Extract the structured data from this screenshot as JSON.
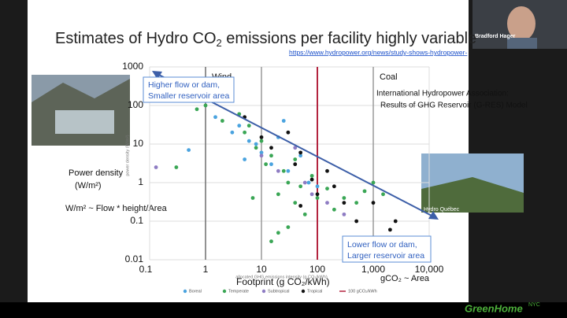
{
  "slide": {
    "title": [
      "Estimates of Hydro CO",
      "2",
      " emissions per facility highly variable"
    ],
    "link": "https://www.hydropower.org/news/study-shows-hydropower-",
    "photo_caption": "Hydro Québec",
    "ylabel_lines": [
      "Power density",
      "(W/m²)"
    ],
    "formula": "W/m² ~ Flow * height/Area",
    "xlabel": "Footprint (g CO₂/kWh)",
    "area_note": "gCO₂ ~ Area"
  },
  "video": {
    "name": "Bradford Hager"
  },
  "logo": {
    "name": "GreenHome",
    "sup": "NYC"
  },
  "chart_data": {
    "type": "scatter",
    "xscale": "log",
    "yscale": "log",
    "grid": true,
    "xlabel": "allocated GHG emissions intensity (g CO₂/kWh)",
    "ylabel": "power density (W/m²)",
    "xlim": [
      0.1,
      10000
    ],
    "ylim": [
      0.01,
      1000
    ],
    "xticks": [
      0.1,
      1,
      10,
      100,
      {
        "value": 1000,
        "label": "1,000"
      },
      {
        "value": 10000,
        "label": "10,000"
      }
    ],
    "yticks": [
      0.01,
      0.1,
      1,
      10,
      100,
      1000
    ],
    "ref_lines": [
      {
        "value": 1,
        "color": "#6e6e6e",
        "label": "Wind"
      },
      {
        "value": 10,
        "color": "#9a9a9a"
      },
      {
        "value": 100,
        "color": "#b3243f",
        "name": "100 gCO₂/kWh"
      },
      {
        "value": 1000,
        "color": "#9a9a9a",
        "label": "Coal"
      }
    ],
    "annotations": {
      "upper": [
        "Higher flow or dam,",
        "Smaller reservoir area"
      ],
      "lower": [
        "Lower flow or dam,",
        "Larger reservoir area"
      ],
      "source": [
        "International Hydropower Association:",
        "Results of GHG Reservoir (G-RES) Model"
      ]
    },
    "series": [
      {
        "name": "Boreal",
        "color": "#4aa3df",
        "x": [
          0.5,
          1.5,
          3,
          4,
          5,
          8,
          10,
          15,
          20,
          30,
          50,
          70,
          100,
          25,
          6
        ],
        "values": [
          7,
          50,
          20,
          30,
          4,
          10,
          6,
          3,
          15,
          2,
          5,
          1,
          0.8,
          40,
          12
        ]
      },
      {
        "name": "Temperate",
        "color": "#3aa655",
        "x": [
          0.7,
          1,
          2,
          3,
          4,
          5,
          6,
          8,
          10,
          12,
          15,
          20,
          25,
          30,
          40,
          50,
          60,
          80,
          100,
          150,
          200,
          300,
          500,
          700,
          1000,
          1500,
          2,
          7,
          40,
          0.3,
          30,
          15,
          20
        ],
        "values": [
          80,
          100,
          40,
          150,
          60,
          20,
          30,
          8,
          12,
          3,
          5,
          0.5,
          2,
          1,
          0.3,
          0.8,
          0.15,
          1.5,
          0.4,
          0.7,
          0.2,
          0.4,
          0.3,
          0.6,
          1,
          0.5,
          200,
          0.4,
          4,
          2.5,
          0.07,
          0.03,
          0.05
        ]
      },
      {
        "name": "Subtropical",
        "color": "#8e7cc3",
        "x": [
          0.13,
          10,
          20,
          40,
          60,
          80,
          150,
          300
        ],
        "values": [
          2.5,
          5,
          2,
          8,
          1,
          0.5,
          0.3,
          0.15
        ]
      },
      {
        "name": "Tropical",
        "color": "#111111",
        "x": [
          5,
          10,
          15,
          30,
          40,
          50,
          80,
          100,
          150,
          200,
          300,
          500,
          1000,
          2000,
          2500,
          50
        ],
        "values": [
          50,
          15,
          8,
          20,
          3,
          6,
          1.2,
          0.5,
          2,
          0.8,
          0.3,
          0.1,
          0.3,
          0.06,
          0.1,
          0.25
        ]
      }
    ]
  }
}
